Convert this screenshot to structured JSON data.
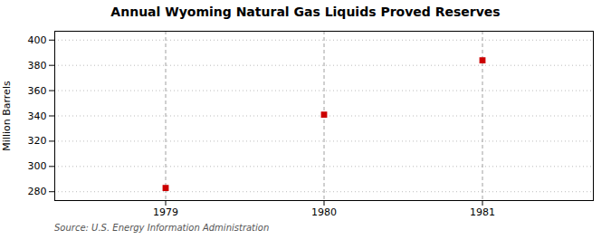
{
  "chart_data": {
    "type": "scatter",
    "title": "Annual Wyoming Natural Gas Liquids Proved Reserves",
    "ylabel": "Million Barrels",
    "source": "Source: U.S. Energy Information Administration",
    "x": [
      1979,
      1980,
      1981
    ],
    "values": [
      283,
      341,
      384
    ],
    "color": "#cc0000",
    "marker": "square",
    "xlim": [
      1978.3,
      1981.7
    ],
    "xticks": [
      1979,
      1980,
      1981
    ],
    "ylim": [
      273,
      407
    ],
    "yticks": [
      280,
      300,
      320,
      340,
      360,
      380,
      400
    ],
    "grid": true
  }
}
